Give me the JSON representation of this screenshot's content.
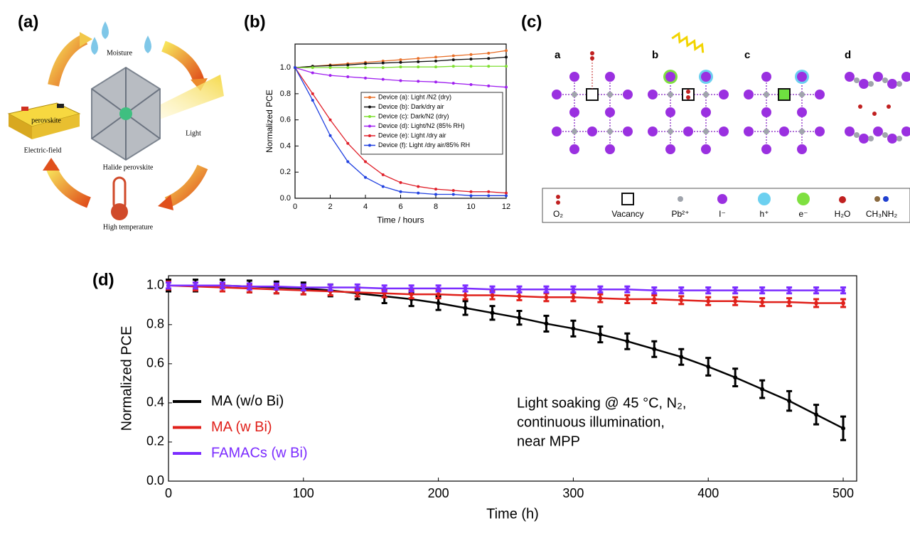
{
  "panel_labels": [
    "(a)",
    "(b)",
    "(c)",
    "(d)"
  ],
  "diagram_a": {
    "labels": [
      "Moisture",
      "Light",
      "perovskite",
      "Electric-field",
      "Halide perovskite",
      "High temperature"
    ]
  },
  "diagram_c": {
    "sublabels": [
      "a",
      "b",
      "c",
      "d"
    ],
    "legend": [
      "O₂",
      "Vacancy",
      "Pb²⁺",
      "I⁻",
      "h⁺",
      "e⁻",
      "H₂O",
      "CH₃NH₂"
    ]
  },
  "chart_data": [
    {
      "type": "line",
      "xlabel": "Time / hours",
      "ylabel": "Normalized PCE",
      "legend": "right",
      "markers": "dot",
      "x": [
        0,
        1,
        2,
        3,
        4,
        5,
        6,
        7,
        8,
        9,
        10,
        11,
        12
      ],
      "xlim": [
        0,
        12
      ],
      "xticks": [
        0,
        2,
        4,
        6,
        8,
        10,
        12
      ],
      "ylim": [
        0,
        1.18
      ],
      "yticks": [
        {
          "value": 0,
          "label": "0.0"
        },
        0.2,
        0.4,
        0.6,
        0.8,
        {
          "value": 1,
          "label": "1.0"
        }
      ],
      "series": [
        {
          "name": "Device (a): Light /N2 (dry)",
          "color": "#e8702a",
          "values": [
            1.0,
            1.01,
            1.02,
            1.03,
            1.04,
            1.05,
            1.06,
            1.07,
            1.08,
            1.09,
            1.1,
            1.11,
            1.13
          ]
        },
        {
          "name": "Device (b): Dark/dry air",
          "color": "#111111",
          "values": [
            1.0,
            1.01,
            1.015,
            1.02,
            1.03,
            1.035,
            1.04,
            1.045,
            1.05,
            1.06,
            1.065,
            1.07,
            1.08
          ]
        },
        {
          "name": "Device (c): Dark/N2 (dry)",
          "color": "#7fe030",
          "values": [
            1.0,
            1.0,
            1.0,
            1.0,
            1.0,
            1.0,
            1.005,
            1.005,
            1.005,
            1.01,
            1.01,
            1.01,
            1.01
          ]
        },
        {
          "name": "Device (d): Light/N2 (85% RH)",
          "color": "#a020f0",
          "values": [
            1.0,
            0.96,
            0.94,
            0.93,
            0.92,
            0.91,
            0.9,
            0.895,
            0.89,
            0.88,
            0.87,
            0.86,
            0.85
          ]
        },
        {
          "name": "Device (e): Light /dry air",
          "color": "#e0202a",
          "values": [
            1.0,
            0.8,
            0.6,
            0.42,
            0.28,
            0.18,
            0.12,
            0.09,
            0.07,
            0.06,
            0.05,
            0.05,
            0.04
          ]
        },
        {
          "name": "Device (f): Light /dry air/85% RH",
          "color": "#2040e0",
          "values": [
            1.0,
            0.75,
            0.48,
            0.28,
            0.16,
            0.09,
            0.05,
            0.04,
            0.03,
            0.03,
            0.02,
            0.02,
            0.02
          ]
        }
      ]
    },
    {
      "type": "line",
      "xlabel": "Time (h)",
      "ylabel": "Normalized PCE",
      "legend": "lower left",
      "markers": "errorbar",
      "annotation": [
        "Light soaking @ 45 °C, N₂,",
        "continuous illumination,",
        "near MPP"
      ],
      "x": [
        0,
        20,
        40,
        60,
        80,
        100,
        120,
        140,
        160,
        180,
        200,
        220,
        240,
        260,
        280,
        300,
        320,
        340,
        360,
        380,
        400,
        420,
        440,
        460,
        480,
        500
      ],
      "xlim": [
        0,
        510
      ],
      "xticks": [
        0,
        100,
        200,
        300,
        400,
        500
      ],
      "ylim": [
        0,
        1.05
      ],
      "yticks": [
        {
          "value": 0,
          "label": "0.0"
        },
        0.2,
        0.4,
        0.6,
        0.8,
        {
          "value": 1,
          "label": "1.0"
        }
      ],
      "series": [
        {
          "name": "MA (w/o Bi)",
          "color": "#000000",
          "values": [
            1.0,
            1.0,
            1.0,
            0.995,
            0.99,
            0.985,
            0.975,
            0.96,
            0.945,
            0.93,
            0.91,
            0.885,
            0.86,
            0.835,
            0.805,
            0.78,
            0.75,
            0.715,
            0.675,
            0.635,
            0.585,
            0.53,
            0.47,
            0.41,
            0.34,
            0.27
          ],
          "errors": [
            0.03,
            0.03,
            0.03,
            0.03,
            0.03,
            0.03,
            0.03,
            0.03,
            0.035,
            0.035,
            0.035,
            0.035,
            0.035,
            0.035,
            0.04,
            0.04,
            0.04,
            0.04,
            0.04,
            0.04,
            0.045,
            0.045,
            0.045,
            0.05,
            0.05,
            0.06
          ]
        },
        {
          "name": "MA (w Bi)",
          "color": "#e0201a",
          "values": [
            1.0,
            0.995,
            0.99,
            0.985,
            0.98,
            0.975,
            0.97,
            0.965,
            0.96,
            0.955,
            0.955,
            0.95,
            0.95,
            0.945,
            0.94,
            0.94,
            0.935,
            0.93,
            0.93,
            0.925,
            0.92,
            0.92,
            0.915,
            0.915,
            0.91,
            0.91
          ],
          "errors": [
            0.02,
            0.02,
            0.02,
            0.02,
            0.02,
            0.02,
            0.02,
            0.02,
            0.02,
            0.02,
            0.02,
            0.02,
            0.02,
            0.02,
            0.02,
            0.02,
            0.02,
            0.02,
            0.02,
            0.02,
            0.02,
            0.02,
            0.02,
            0.02,
            0.02,
            0.02
          ]
        },
        {
          "name": "FAMACs (w Bi)",
          "color": "#7b2cff",
          "values": [
            1.0,
            1.0,
            1.0,
            0.995,
            0.995,
            0.99,
            0.99,
            0.99,
            0.985,
            0.985,
            0.985,
            0.985,
            0.98,
            0.98,
            0.98,
            0.98,
            0.98,
            0.98,
            0.975,
            0.975,
            0.975,
            0.975,
            0.975,
            0.975,
            0.975,
            0.975
          ],
          "errors": [
            0.015,
            0.015,
            0.015,
            0.015,
            0.015,
            0.015,
            0.015,
            0.015,
            0.015,
            0.015,
            0.015,
            0.015,
            0.015,
            0.015,
            0.015,
            0.015,
            0.015,
            0.015,
            0.015,
            0.015,
            0.015,
            0.015,
            0.015,
            0.015,
            0.015,
            0.015
          ]
        }
      ]
    }
  ]
}
